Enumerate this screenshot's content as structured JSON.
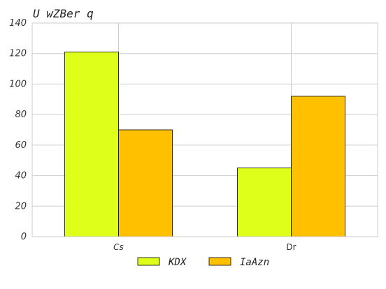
{
  "chart_data": {
    "type": "bar",
    "title": "U wZBer q",
    "categories": [
      "Cs",
      "Dr"
    ],
    "series": [
      {
        "name": "KDX",
        "values": [
          121,
          45
        ],
        "color": "#ddff1a"
      },
      {
        "name": "IaAzn",
        "values": [
          70,
          92
        ],
        "color": "#ffc000"
      }
    ],
    "ylim": [
      0,
      140
    ],
    "yticks": [
      0,
      20,
      40,
      60,
      80,
      100,
      120,
      140
    ],
    "xlabel": "",
    "ylabel": "",
    "grid": true,
    "legend_position": "bottom-center",
    "bar_edge_color": "#000000",
    "grid_color": "#cccccc"
  }
}
